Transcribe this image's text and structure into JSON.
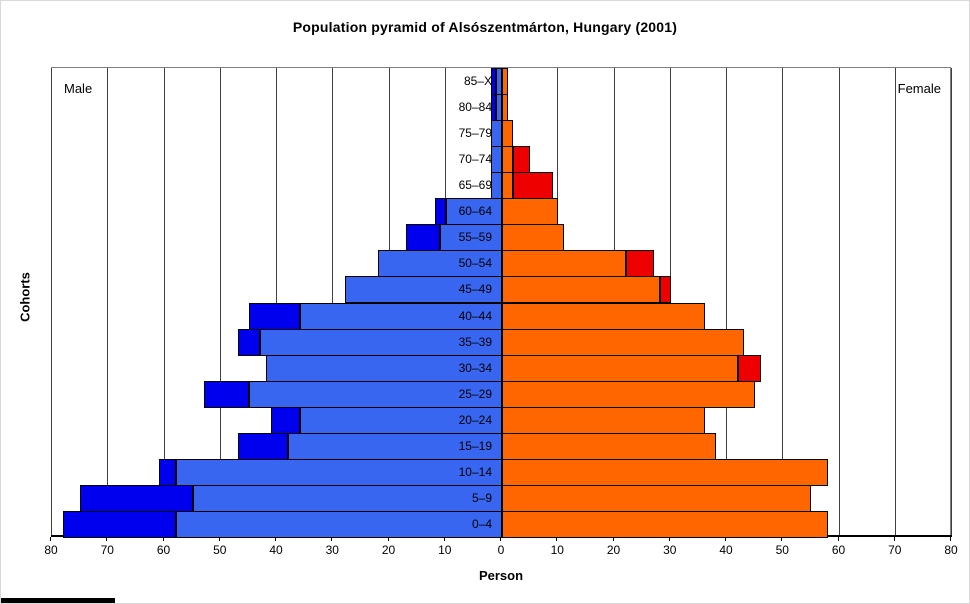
{
  "side_labels": {
    "male": "Male",
    "female": "Female"
  },
  "chart_data": {
    "type": "bar",
    "variant": "population-pyramid",
    "title": "Population pyramid of Alsószentmárton, Hungary (2001)",
    "xlabel": "Person",
    "ylabel": "Cohorts",
    "grid": true,
    "legend_position": "none",
    "axis_range_per_side": [
      0,
      80
    ],
    "tick_values": [
      -80,
      -70,
      -60,
      -50,
      -40,
      -30,
      -20,
      -10,
      0,
      10,
      20,
      30,
      40,
      50,
      60,
      70,
      80
    ],
    "tick_labels": [
      "80",
      "70",
      "60",
      "50",
      "40",
      "30",
      "20",
      "10",
      "0",
      "10",
      "20",
      "30",
      "40",
      "50",
      "60",
      "70",
      "80"
    ],
    "categories": [
      "0–4",
      "5–9",
      "10–14",
      "15–19",
      "20–24",
      "25–29",
      "30–34",
      "35–39",
      "40–44",
      "45–49",
      "50–54",
      "55–59",
      "60–64",
      "65–69",
      "70–74",
      "75–79",
      "80–84",
      "85–X"
    ],
    "series": [
      {
        "name": "Male",
        "values": [
          78,
          75,
          61,
          47,
          41,
          53,
          42,
          47,
          45,
          28,
          22,
          17,
          12,
          2,
          2,
          2,
          2,
          2
        ]
      },
      {
        "name": "Female",
        "values": [
          58,
          55,
          58,
          38,
          36,
          45,
          46,
          43,
          36,
          30,
          27,
          11,
          10,
          9,
          5,
          2,
          1,
          1
        ]
      }
    ],
    "colors": {
      "male_common": "#3966F0",
      "male_surplus": "#0000EE",
      "female_common": "#FF6600",
      "female_surplus": "#EE0000",
      "bar_border": "#000000",
      "gridline": "#404040"
    }
  }
}
